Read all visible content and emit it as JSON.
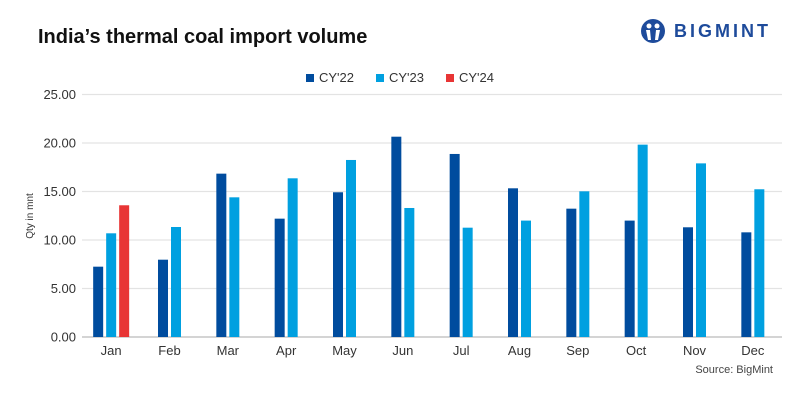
{
  "title": "India’s thermal coal import volume",
  "logo": {
    "text": "BIGMINT",
    "color": "#1e4b9b"
  },
  "source": "Source: BigMint",
  "chart_data": {
    "type": "bar",
    "title": "India’s thermal coal import volume",
    "xlabel": "",
    "ylabel": "Qty in mnt",
    "ylim": [
      0,
      25
    ],
    "yticks": [
      "0.00",
      "5.00",
      "10.00",
      "15.00",
      "20.00",
      "25.00"
    ],
    "grid": true,
    "legend_position": "top",
    "categories": [
      "Jan",
      "Feb",
      "Mar",
      "Apr",
      "May",
      "Jun",
      "Jul",
      "Aug",
      "Sep",
      "Oct",
      "Nov",
      "Dec"
    ],
    "series": [
      {
        "name": "CY'22",
        "color": "#004c9e",
        "values": [
          7.25,
          7.97,
          16.84,
          12.2,
          14.92,
          20.65,
          18.87,
          15.33,
          13.23,
          12.0,
          11.31,
          10.79
        ]
      },
      {
        "name": "CY'23",
        "color": "#00a0e0",
        "values": [
          10.69,
          11.34,
          14.4,
          16.36,
          18.25,
          13.3,
          11.27,
          12.0,
          15.02,
          19.83,
          17.9,
          15.23
        ]
      },
      {
        "name": "CY'24",
        "color": "#e83535",
        "values": [
          13.58,
          null,
          null,
          null,
          null,
          null,
          null,
          null,
          null,
          null,
          null,
          null
        ]
      }
    ]
  }
}
